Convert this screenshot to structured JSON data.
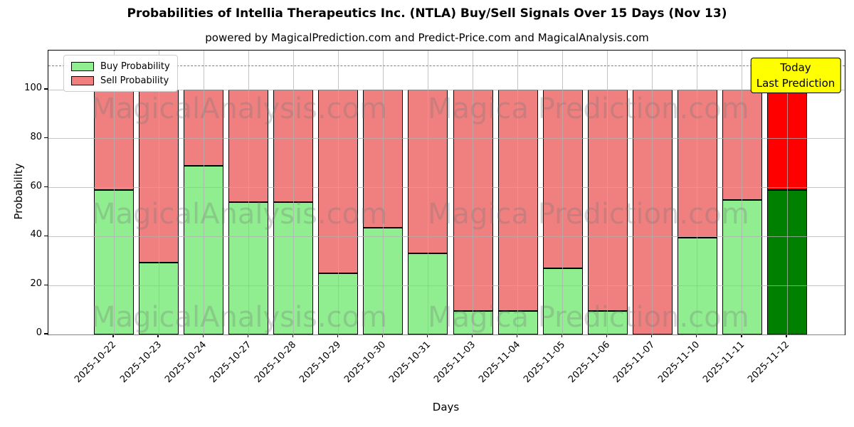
{
  "chart_data": {
    "type": "bar",
    "stacked": true,
    "title": "Probabilities of Intellia Therapeutics Inc. (NTLA) Buy/Sell Signals Over 15 Days (Nov 13)",
    "subtitle": "powered by MagicalPrediction.com and Predict-Price.com and MagicalAnalysis.com",
    "xlabel": "Days",
    "ylabel": "Probability",
    "categories": [
      "2025-10-22",
      "2025-10-23",
      "2025-10-24",
      "2025-10-27",
      "2025-10-28",
      "2025-10-29",
      "2025-10-30",
      "2025-10-31",
      "2025-11-03",
      "2025-11-04",
      "2025-11-05",
      "2025-11-06",
      "2025-11-07",
      "2025-11-10",
      "2025-11-11",
      "2025-11-12"
    ],
    "series": [
      {
        "name": "Buy Probability",
        "color": "#90ee90",
        "values": [
          59,
          29.5,
          69,
          54,
          54,
          25,
          43.5,
          33,
          9.5,
          9.5,
          27,
          9.5,
          0,
          39.5,
          55,
          59
        ]
      },
      {
        "name": "Sell Probability",
        "color": "#f08080",
        "values": [
          41,
          70.5,
          31,
          46,
          46,
          75,
          56.5,
          67,
          90.5,
          90.5,
          73,
          90.5,
          100,
          60.5,
          45,
          41
        ]
      }
    ],
    "today_bar": {
      "category": "2025-11-12",
      "buy_color": "#008000",
      "sell_color": "#ff0000"
    },
    "bar_edge_color": "#000000",
    "ylim": [
      0,
      116
    ],
    "yticks": [
      0,
      20,
      40,
      60,
      80,
      100
    ],
    "dashed_line_y": 110,
    "grid": true,
    "grid_color": "#b0b0b0",
    "legend_position": "upper left",
    "annotation_box": {
      "line1": "Today",
      "line2": "Last Prediction",
      "bg_color": "#ffff00"
    },
    "watermark": {
      "left": "MagicalAnalysis.com",
      "right": "Magica Prediction.com"
    }
  }
}
